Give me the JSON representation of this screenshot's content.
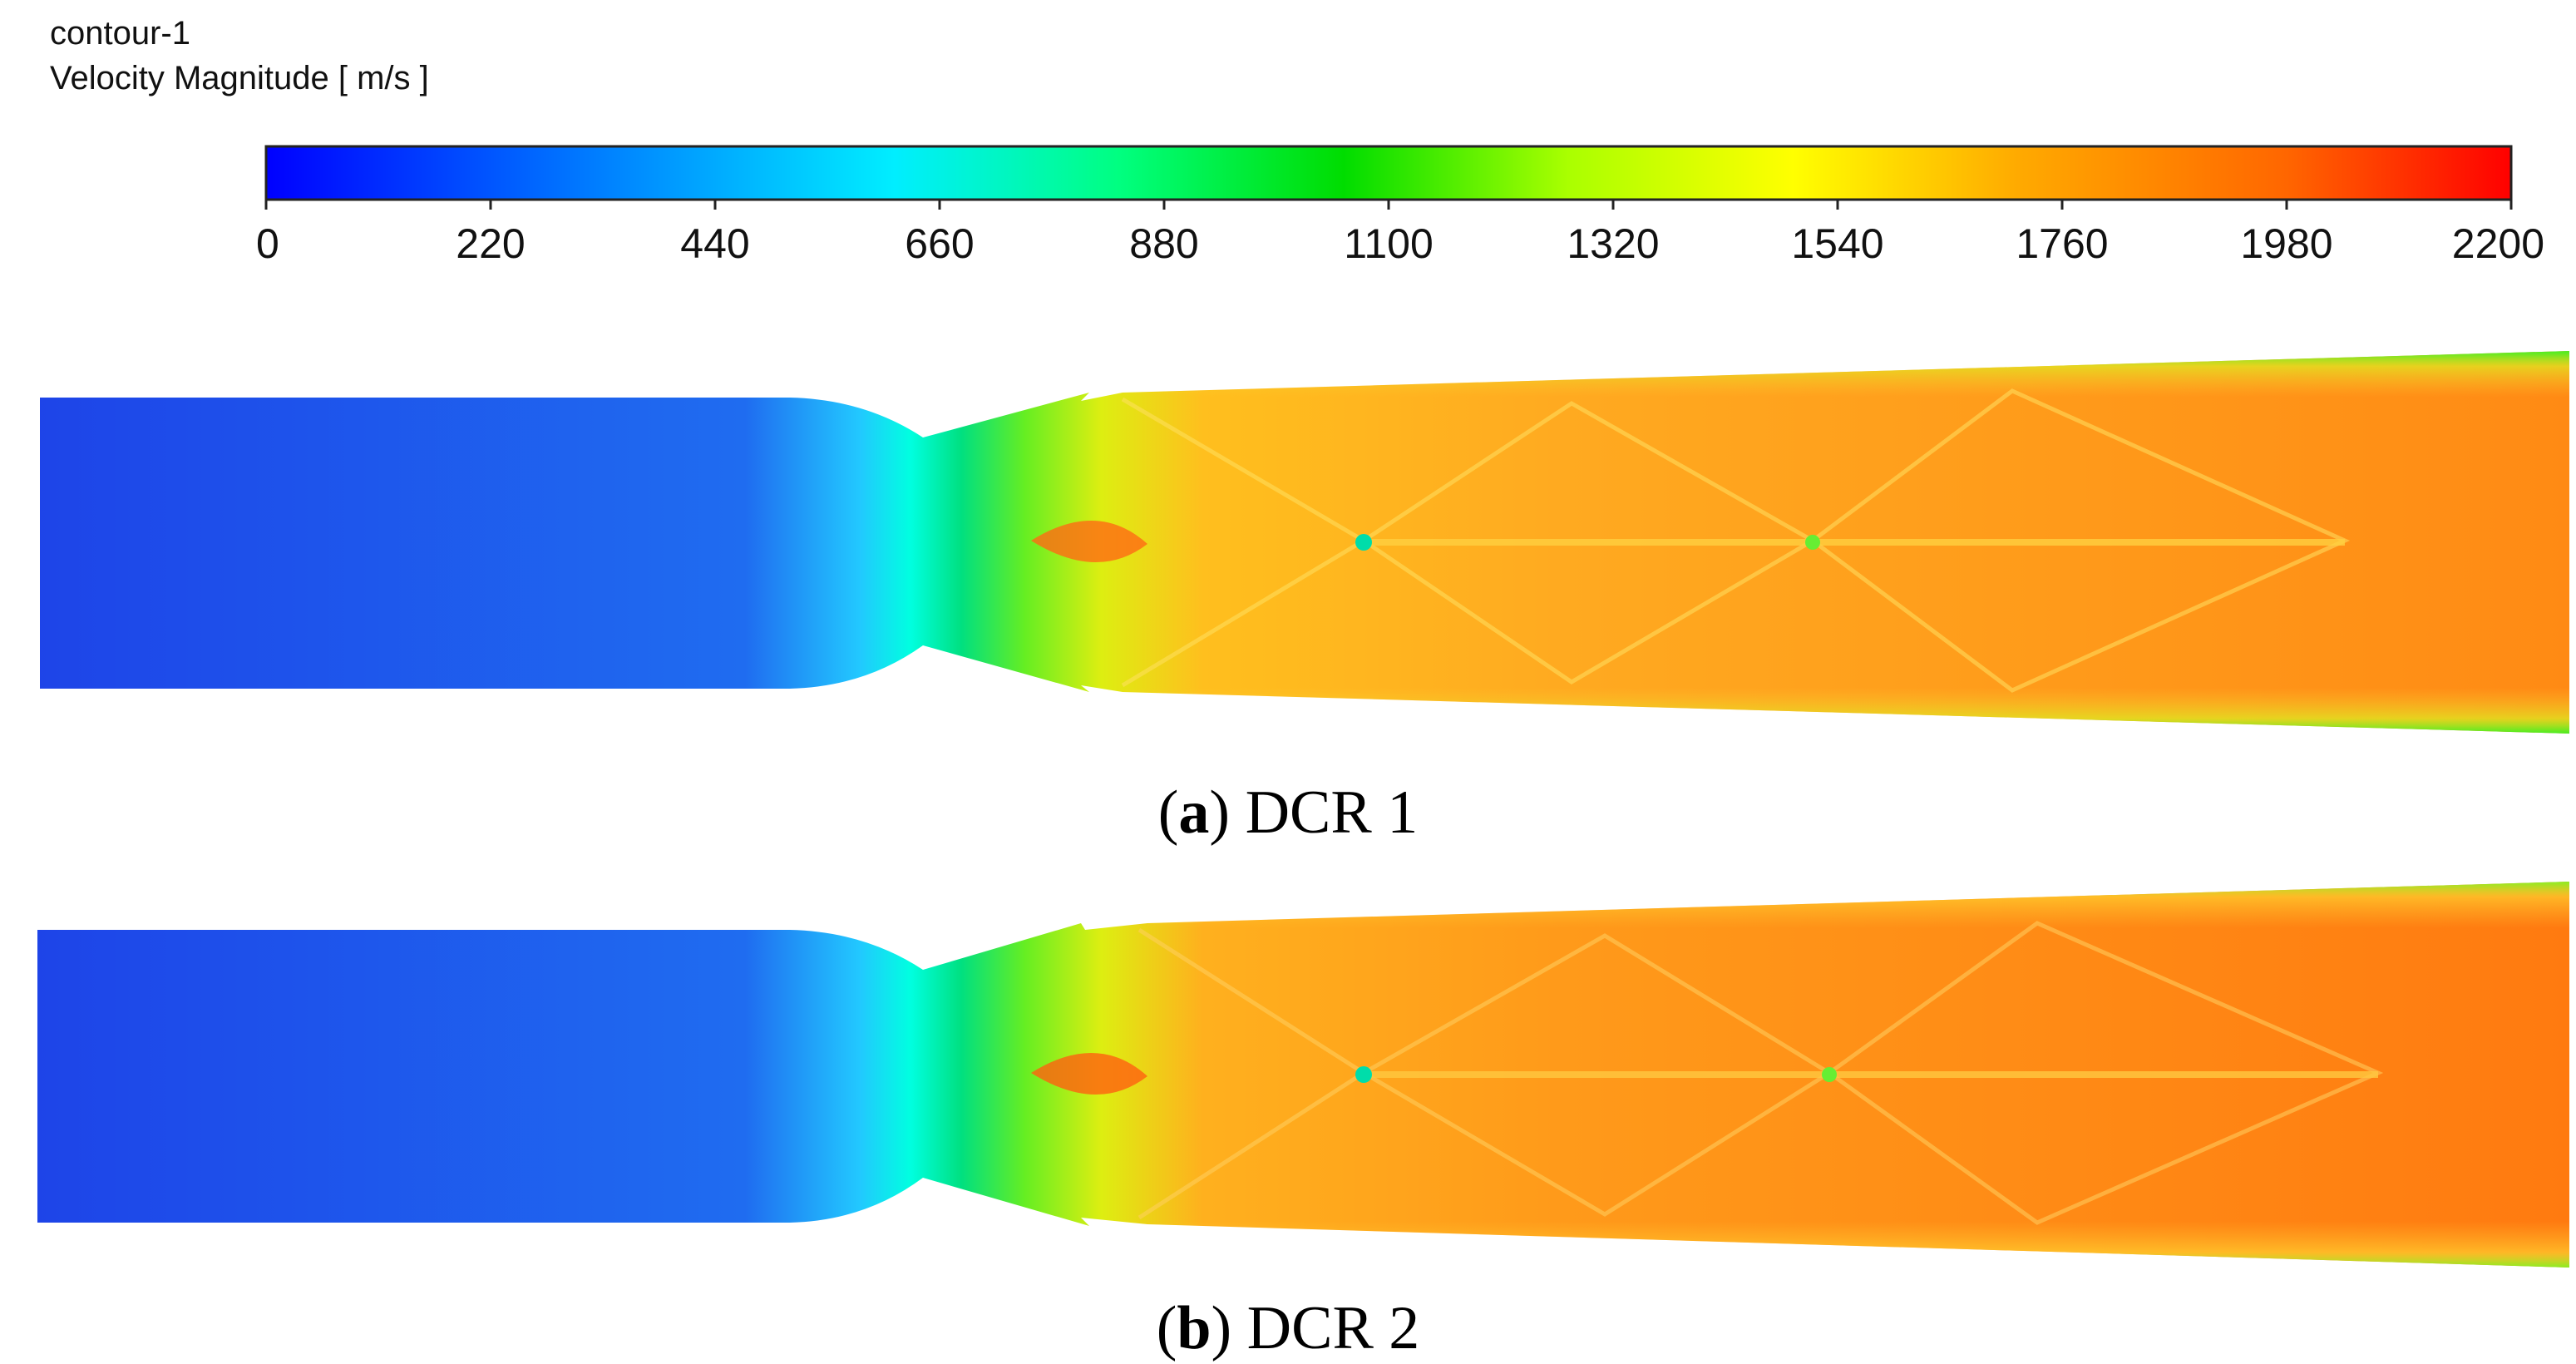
{
  "legend": {
    "title_line1": "contour-1",
    "title_line2": "Velocity Magnitude [ m/s ]",
    "min": 0,
    "max": 2200,
    "ticks": [
      "0",
      "220",
      "440",
      "660",
      "880",
      "1100",
      "1320",
      "1540",
      "1760",
      "1980",
      "2200"
    ],
    "colormap": [
      "#0000ff",
      "#00aaff",
      "#00ffff",
      "#00ff55",
      "#00cc00",
      "#ffff00",
      "#ffaa00",
      "#ff6600",
      "#ff0000"
    ]
  },
  "panels": [
    {
      "letter": "a",
      "label": "DCR 1"
    },
    {
      "letter": "b",
      "label": "DCR 2"
    }
  ]
}
